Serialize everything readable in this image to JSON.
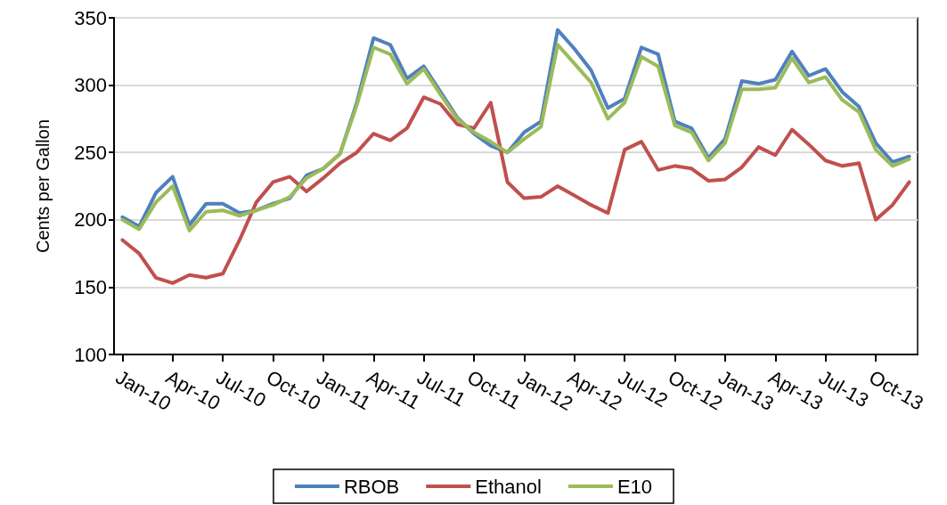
{
  "chart_data": {
    "type": "line",
    "ylabel": "Cents per Gallon",
    "categories": [
      "Jan-10",
      null,
      null,
      "Apr-10",
      null,
      null,
      "Jul-10",
      null,
      null,
      "Oct-10",
      null,
      null,
      "Jan-11",
      null,
      null,
      "Apr-11",
      null,
      null,
      "Jul-11",
      null,
      null,
      "Oct-11",
      null,
      null,
      "Jan-12",
      null,
      null,
      "Apr-12",
      null,
      null,
      "Jul-12",
      null,
      null,
      "Oct-12",
      null,
      null,
      "Jan-13",
      null,
      null,
      "Apr-13",
      null,
      null,
      "Jul-13",
      null,
      null,
      "Oct-13",
      null,
      null
    ],
    "series": [
      {
        "name": "RBOB",
        "color": "#4f81bd",
        "values": [
          202,
          195,
          220,
          232,
          196,
          212,
          212,
          205,
          207,
          212,
          216,
          233,
          238,
          249,
          287,
          335,
          330,
          305,
          314,
          295,
          276,
          264,
          255,
          250,
          265,
          273,
          341,
          327,
          311,
          283,
          290,
          328,
          323,
          273,
          268,
          246,
          260,
          303,
          301,
          304,
          325,
          307,
          312,
          295,
          284,
          257,
          243,
          247
        ]
      },
      {
        "name": "Ethanol",
        "color": "#c0504d",
        "values": [
          185,
          175,
          157,
          153,
          159,
          157,
          160,
          185,
          213,
          228,
          232,
          221,
          231,
          242,
          250,
          264,
          259,
          268,
          291,
          286,
          271,
          268,
          287,
          228,
          216,
          217,
          225,
          218,
          211,
          205,
          252,
          258,
          237,
          240,
          238,
          229,
          230,
          239,
          254,
          248,
          267,
          256,
          244,
          240,
          242,
          200,
          211,
          228
        ]
      },
      {
        "name": "E10",
        "color": "#9bbb59",
        "values": [
          200,
          193,
          213,
          225,
          192,
          206,
          207,
          203,
          207,
          211,
          217,
          231,
          238,
          249,
          285,
          328,
          323,
          301,
          312,
          293,
          275,
          265,
          258,
          250,
          260,
          269,
          330,
          316,
          302,
          275,
          287,
          321,
          314,
          270,
          265,
          244,
          257,
          297,
          297,
          298,
          320,
          302,
          306,
          289,
          280,
          252,
          240,
          245
        ]
      }
    ],
    "ylim": [
      100,
      350
    ],
    "yticks": [
      100,
      150,
      200,
      250,
      300,
      350
    ],
    "grid": "y",
    "legend": "bottom",
    "marker": "none",
    "line_style": "solid"
  }
}
